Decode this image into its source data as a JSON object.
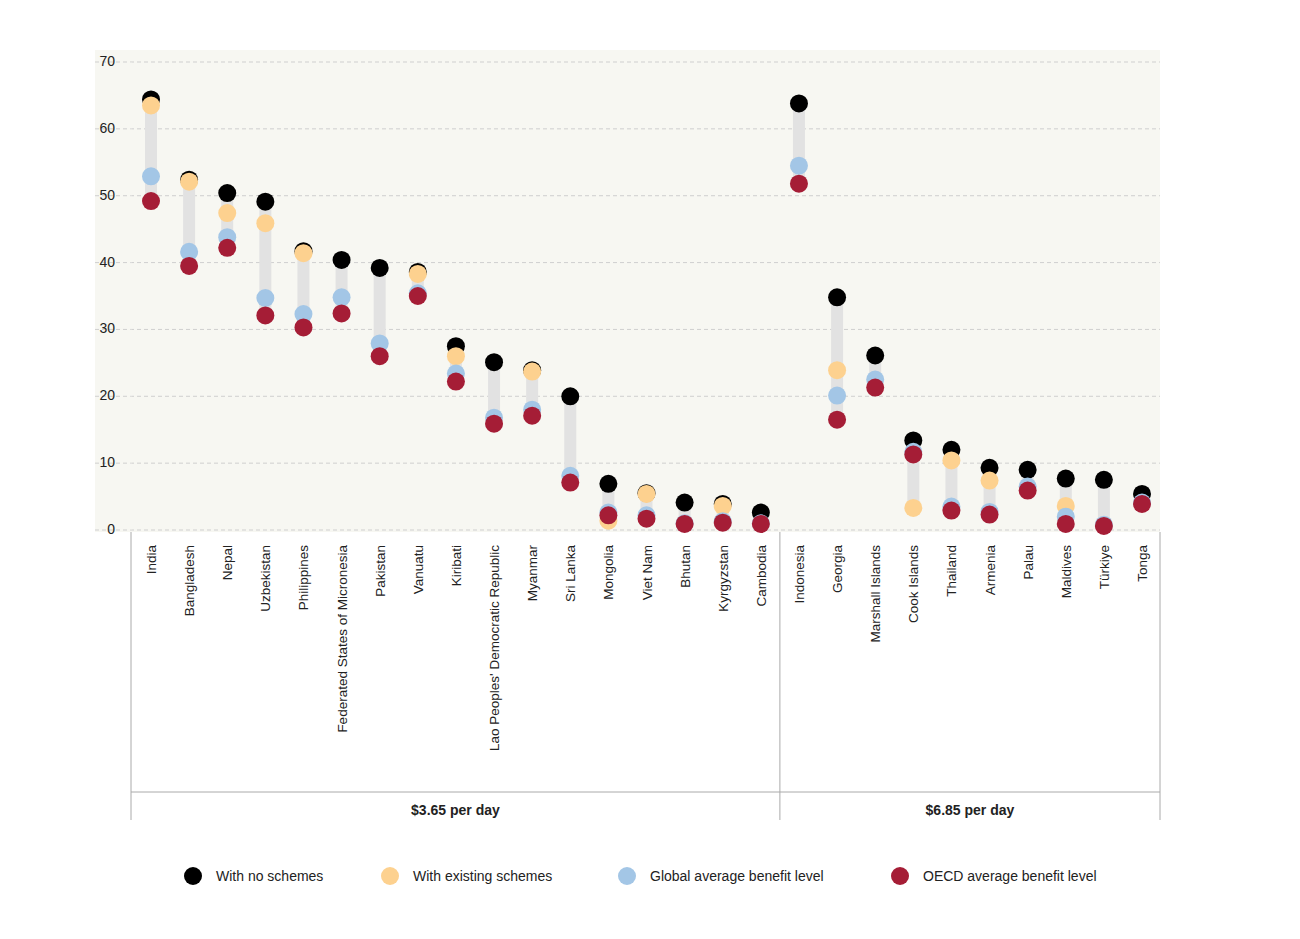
{
  "chart_data": {
    "type": "dot",
    "categories": [
      "India",
      "Bangladesh",
      "Nepal",
      "Uzbekistan",
      "Philippines",
      "Federated States of Micronesia",
      "Pakistan",
      "Vanuatu",
      "Kiribati",
      "Lao Peoples' Democratic Republic",
      "Myanmar",
      "Sri Lanka",
      "Mongolia",
      "Viet Nam",
      "Bhutan",
      "Kyrgyzstan",
      "Cambodia",
      "Indonesia",
      "Georgia",
      "Marshall Islands",
      "Cook Islands",
      "Thailand",
      "Armenia",
      "Palau",
      "Maldives",
      "Türkiye",
      "Tonga"
    ],
    "category_groups": [
      "$3.65 per day",
      "$3.65 per day",
      "$3.65 per day",
      "$3.65 per day",
      "$3.65 per day",
      "$3.65 per day",
      "$3.65 per day",
      "$3.65 per day",
      "$3.65 per day",
      "$3.65 per day",
      "$3.65 per day",
      "$3.65 per day",
      "$3.65 per day",
      "$3.65 per day",
      "$3.65 per day",
      "$3.65 per day",
      "$3.65 per day",
      "$6.85 per day",
      "$6.85 per day",
      "$6.85 per day",
      "$6.85 per day",
      "$6.85 per day",
      "$6.85 per day",
      "$6.85 per day",
      "$6.85 per day",
      "$6.85 per day",
      "$6.85 per day"
    ],
    "series": [
      {
        "name": "With no schemes",
        "color": "#000000",
        "marker": "circle",
        "values": [
          64.4,
          52.4,
          50.4,
          49.1,
          41.7,
          40.4,
          39.2,
          38.6,
          27.5,
          25.1,
          23.9,
          20.0,
          6.9,
          5.5,
          4.1,
          3.9,
          2.6,
          63.8,
          34.8,
          26.1,
          13.4,
          12.0,
          9.3,
          9.0,
          7.7,
          7.5,
          5.4
        ]
      },
      {
        "name": "With existing schemes",
        "color": "#fdd18f",
        "marker": "circle",
        "values": [
          63.5,
          52.1,
          47.4,
          45.9,
          41.4,
          null,
          null,
          38.3,
          26.0,
          null,
          23.7,
          null,
          1.4,
          5.4,
          null,
          3.6,
          null,
          null,
          23.9,
          null,
          3.3,
          10.4,
          7.4,
          null,
          3.6,
          null,
          null
        ]
      },
      {
        "name": "Global average benefit level",
        "color": "#a3c6e6",
        "marker": "circle",
        "values": [
          52.9,
          41.6,
          43.8,
          34.7,
          32.3,
          34.8,
          27.9,
          35.4,
          23.4,
          16.8,
          18.0,
          8.1,
          2.6,
          2.2,
          1.0,
          1.3,
          1.0,
          54.5,
          20.1,
          22.5,
          11.7,
          3.5,
          2.7,
          6.5,
          2.0,
          0.8,
          4.1
        ]
      },
      {
        "name": "OECD average benefit level",
        "color": "#a51d36",
        "marker": "circle",
        "values": [
          49.2,
          39.5,
          42.2,
          32.1,
          30.3,
          32.4,
          26.0,
          35.0,
          22.2,
          15.9,
          17.1,
          7.1,
          2.2,
          1.7,
          0.9,
          1.1,
          0.9,
          51.8,
          16.5,
          21.3,
          11.3,
          2.9,
          2.3,
          5.9,
          0.9,
          0.6,
          3.9
        ]
      }
    ],
    "ylim": [
      0,
      70
    ],
    "yticks": [
      0,
      10,
      20,
      30,
      40,
      50,
      60,
      70
    ],
    "grid": true,
    "legend": "bottom"
  }
}
